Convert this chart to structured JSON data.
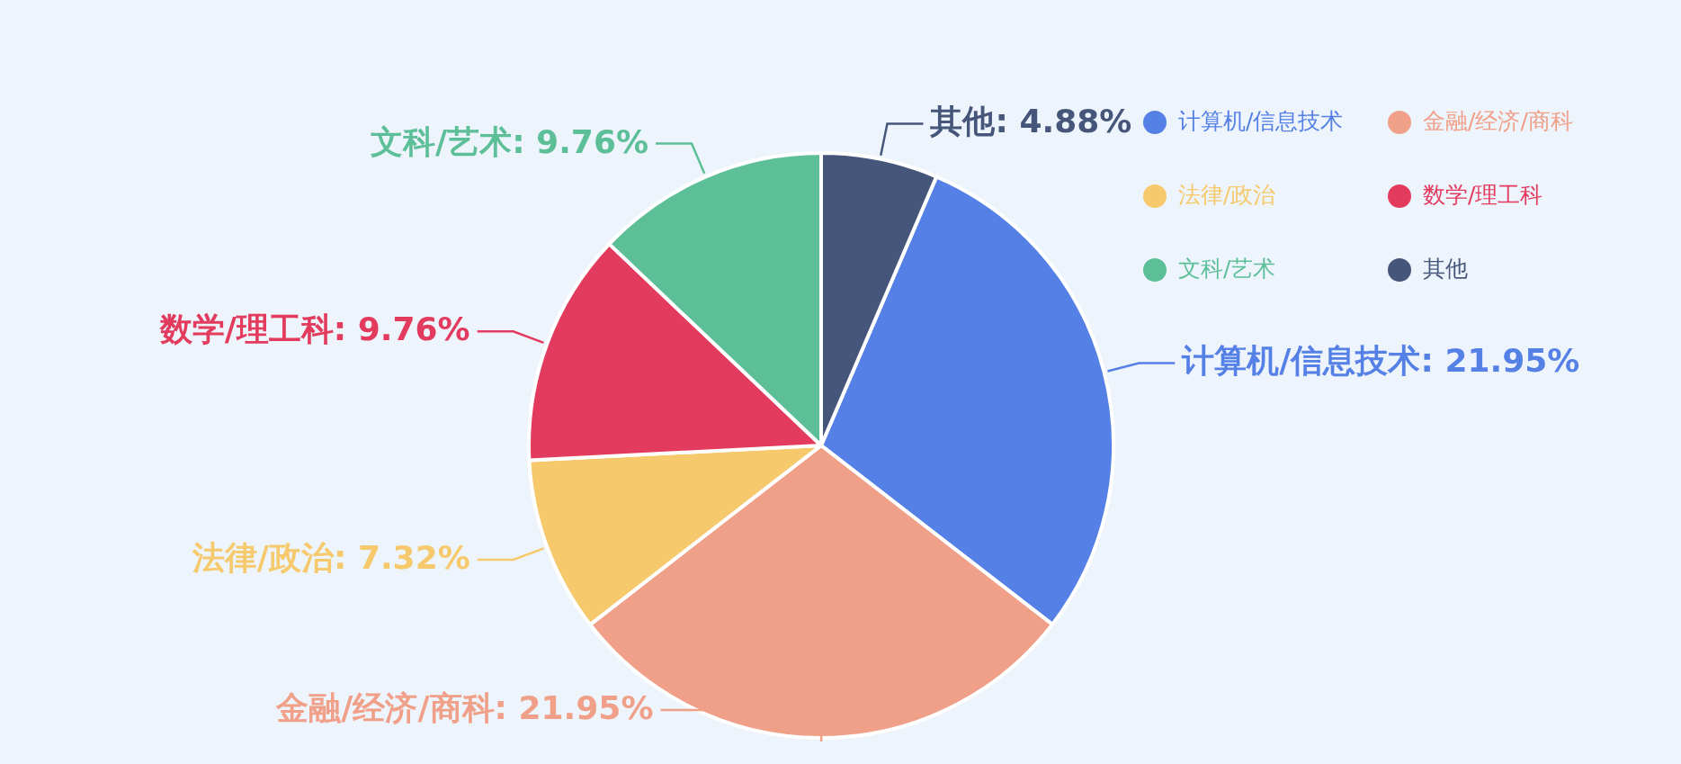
{
  "chart_data": {
    "type": "pie",
    "categories": [
      "计算机/信息技术",
      "金融/经济/商科",
      "法律/政治",
      "数学/理工科",
      "文科/艺术",
      "其他"
    ],
    "values": [
      21.95,
      21.95,
      7.32,
      9.76,
      9.76,
      4.88
    ],
    "colors": [
      "#5580e6",
      "#f0a088",
      "#f5c96c",
      "#e33b5e",
      "#5cbf98",
      "#46557a"
    ],
    "value_labels": [
      ": 21.95%",
      ": 21.95%",
      ": 7.32%",
      ": 9.76%",
      ": 9.76%",
      ": 4.88%"
    ],
    "legend": "top right"
  }
}
